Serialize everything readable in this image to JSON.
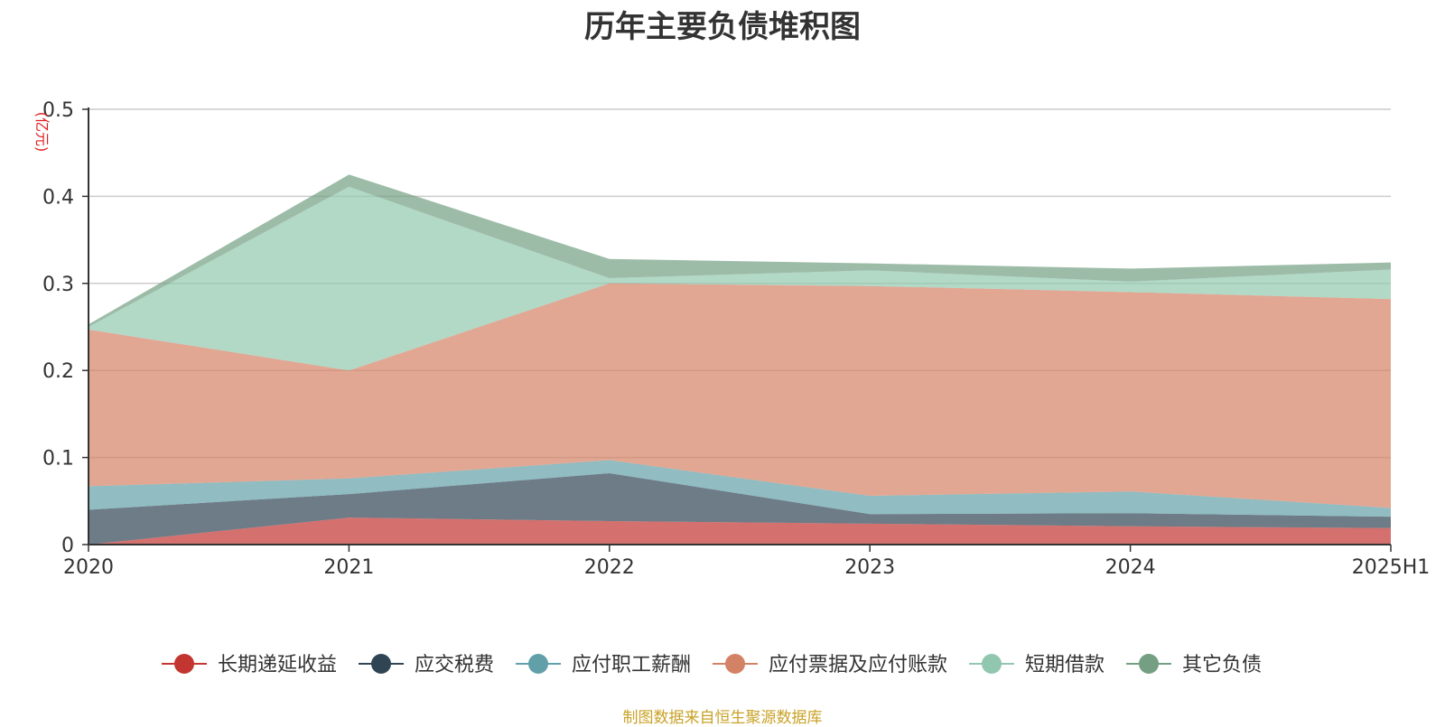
{
  "chart_data": {
    "type": "area",
    "stacked": true,
    "title": "历年主要负债堆积图",
    "ylabel": "(亿元)",
    "x": [
      "2020",
      "2021",
      "2022",
      "2023",
      "2024",
      "2025H1"
    ],
    "yticks": [
      "0",
      "0.1",
      "0.2",
      "0.3",
      "0.4",
      "0.5"
    ],
    "ylim": [
      0,
      0.5
    ],
    "grid": true,
    "legend_position": "bottom",
    "series": [
      {
        "name": "长期递延收益",
        "color": "#c23531",
        "values": [
          0,
          0.031,
          0.027,
          0.024,
          0.021,
          0.019
        ]
      },
      {
        "name": "应交税费",
        "color": "#2f4554",
        "values": [
          0.04,
          0.027,
          0.055,
          0.011,
          0.015,
          0.013
        ]
      },
      {
        "name": "应付职工薪酬",
        "color": "#61a0a8",
        "values": [
          0.027,
          0.018,
          0.015,
          0.021,
          0.025,
          0.01
        ]
      },
      {
        "name": "应付票据及应付账款",
        "color": "#d48265",
        "values": [
          0.18,
          0.124,
          0.203,
          0.241,
          0.229,
          0.24
        ]
      },
      {
        "name": "短期借款",
        "color": "#91c7ae",
        "values": [
          0.003,
          0.211,
          0.006,
          0.018,
          0.012,
          0.034
        ]
      },
      {
        "name": "其它负债",
        "color": "#749f83",
        "values": [
          0.003,
          0.014,
          0.022,
          0.008,
          0.015,
          0.008
        ]
      }
    ]
  },
  "source_note": "制图数据来自恒生聚源数据库"
}
